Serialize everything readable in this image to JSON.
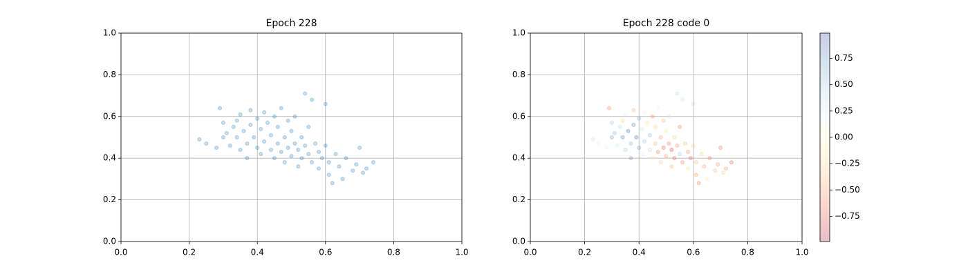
{
  "chart_data": [
    {
      "type": "scatter",
      "title": "Epoch 228",
      "color": "#1f77b4",
      "alpha": 0.25,
      "x": [
        0.23,
        0.25,
        0.28,
        0.29,
        0.3,
        0.3,
        0.31,
        0.32,
        0.33,
        0.34,
        0.34,
        0.35,
        0.35,
        0.36,
        0.37,
        0.37,
        0.38,
        0.38,
        0.39,
        0.4,
        0.4,
        0.41,
        0.41,
        0.42,
        0.42,
        0.43,
        0.44,
        0.44,
        0.45,
        0.45,
        0.46,
        0.46,
        0.47,
        0.47,
        0.48,
        0.48,
        0.49,
        0.49,
        0.5,
        0.5,
        0.51,
        0.51,
        0.52,
        0.52,
        0.53,
        0.53,
        0.54,
        0.54,
        0.55,
        0.55,
        0.56,
        0.56,
        0.57,
        0.58,
        0.58,
        0.59,
        0.6,
        0.6,
        0.61,
        0.61,
        0.62,
        0.63,
        0.64,
        0.65,
        0.66,
        0.68,
        0.69,
        0.7,
        0.71,
        0.72,
        0.74
      ],
      "y": [
        0.49,
        0.47,
        0.45,
        0.64,
        0.57,
        0.5,
        0.52,
        0.46,
        0.55,
        0.58,
        0.5,
        0.61,
        0.44,
        0.53,
        0.47,
        0.4,
        0.63,
        0.56,
        0.5,
        0.59,
        0.45,
        0.54,
        0.42,
        0.62,
        0.48,
        0.57,
        0.44,
        0.51,
        0.6,
        0.4,
        0.47,
        0.55,
        0.64,
        0.43,
        0.5,
        0.38,
        0.58,
        0.45,
        0.53,
        0.41,
        0.47,
        0.6,
        0.44,
        0.36,
        0.5,
        0.4,
        0.71,
        0.46,
        0.55,
        0.42,
        0.38,
        0.68,
        0.47,
        0.43,
        0.35,
        0.4,
        0.66,
        0.46,
        0.32,
        0.38,
        0.28,
        0.42,
        0.36,
        0.3,
        0.4,
        0.34,
        0.37,
        0.45,
        0.33,
        0.35,
        0.38
      ],
      "xlim": [
        0,
        1
      ],
      "ylim": [
        0,
        1
      ],
      "xticks": [
        {
          "value": 0,
          "label": "0.0"
        },
        0.2,
        0.4,
        0.6,
        0.8,
        {
          "value": 1,
          "label": "1.0"
        }
      ],
      "yticks": [
        {
          "value": 0,
          "label": "0.0"
        },
        0.2,
        0.4,
        0.6,
        0.8,
        {
          "value": 1,
          "label": "1.0"
        }
      ],
      "grid": true
    },
    {
      "type": "scatter",
      "title": "Epoch 228 code 0",
      "alpha": 0.25,
      "x": [
        0.23,
        0.25,
        0.28,
        0.29,
        0.3,
        0.3,
        0.31,
        0.32,
        0.33,
        0.34,
        0.34,
        0.35,
        0.35,
        0.36,
        0.37,
        0.37,
        0.38,
        0.38,
        0.39,
        0.4,
        0.4,
        0.41,
        0.41,
        0.42,
        0.42,
        0.43,
        0.44,
        0.44,
        0.45,
        0.45,
        0.46,
        0.46,
        0.47,
        0.47,
        0.48,
        0.48,
        0.49,
        0.49,
        0.5,
        0.5,
        0.51,
        0.51,
        0.52,
        0.52,
        0.53,
        0.53,
        0.54,
        0.54,
        0.55,
        0.55,
        0.56,
        0.56,
        0.57,
        0.58,
        0.58,
        0.59,
        0.6,
        0.6,
        0.61,
        0.61,
        0.62,
        0.63,
        0.64,
        0.65,
        0.66,
        0.68,
        0.69,
        0.7,
        0.71,
        0.72,
        0.74
      ],
      "y": [
        0.49,
        0.47,
        0.45,
        0.64,
        0.57,
        0.5,
        0.52,
        0.46,
        0.55,
        0.58,
        0.5,
        0.61,
        0.44,
        0.53,
        0.47,
        0.4,
        0.63,
        0.56,
        0.5,
        0.59,
        0.45,
        0.54,
        0.42,
        0.62,
        0.48,
        0.57,
        0.44,
        0.51,
        0.6,
        0.4,
        0.47,
        0.55,
        0.64,
        0.43,
        0.5,
        0.38,
        0.58,
        0.45,
        0.53,
        0.41,
        0.47,
        0.6,
        0.44,
        0.36,
        0.5,
        0.4,
        0.71,
        0.46,
        0.55,
        0.42,
        0.38,
        0.68,
        0.47,
        0.43,
        0.35,
        0.4,
        0.66,
        0.46,
        0.32,
        0.38,
        0.28,
        0.42,
        0.36,
        0.3,
        0.4,
        0.34,
        0.37,
        0.45,
        0.33,
        0.35,
        0.38
      ],
      "c": [
        0.3,
        0.1,
        0.2,
        -0.6,
        0.5,
        0.7,
        0.6,
        0.3,
        0.4,
        -0.3,
        0.8,
        0.2,
        0.5,
        0.9,
        0.6,
        0.7,
        -0.4,
        0.8,
        0.9,
        0.6,
        0.7,
        0.3,
        0.2,
        0.1,
        0.5,
        -0.2,
        0.4,
        0.6,
        -0.5,
        -0.1,
        -0.4,
        -0.3,
        0.2,
        -0.6,
        -0.5,
        -0.3,
        -0.4,
        -0.7,
        -0.2,
        -0.5,
        -0.6,
        0.3,
        -0.8,
        -0.4,
        -0.3,
        -0.7,
        0.4,
        -0.5,
        -0.6,
        0.5,
        -0.6,
        0.3,
        -0.4,
        -0.5,
        -0.2,
        -0.7,
        0.4,
        -0.3,
        -0.5,
        -0.4,
        -0.6,
        -0.3,
        -0.5,
        -0.1,
        -0.6,
        -0.4,
        -0.5,
        -0.6,
        -0.3,
        -0.5,
        -0.7
      ],
      "xlim": [
        0,
        1
      ],
      "ylim": [
        0,
        1
      ],
      "xticks": [
        {
          "value": 0,
          "label": "0.0"
        },
        0.2,
        0.4,
        0.6,
        0.8,
        {
          "value": 1,
          "label": "1.0"
        }
      ],
      "yticks": [
        {
          "value": 0,
          "label": "0.0"
        },
        0.2,
        0.4,
        0.6,
        0.8,
        {
          "value": 1,
          "label": "1.0"
        }
      ],
      "grid": true,
      "colormap": [
        "#a50026",
        "#d73027",
        "#f46d43",
        "#fdae61",
        "#fee090",
        "#ffffbf",
        "#e0f3f8",
        "#abd9e9",
        "#74add1",
        "#4575b4",
        "#313695"
      ],
      "clim": [
        -0.99,
        0.99
      ],
      "cticks": [
        {
          "value": -0.75,
          "label": "−0.75"
        },
        {
          "value": -0.5,
          "label": "−0.50"
        },
        {
          "value": -0.25,
          "label": "−0.25"
        },
        {
          "value": 0,
          "label": "0.00"
        },
        0.25,
        {
          "value": 0.5,
          "label": "0.50"
        },
        0.75
      ]
    }
  ]
}
